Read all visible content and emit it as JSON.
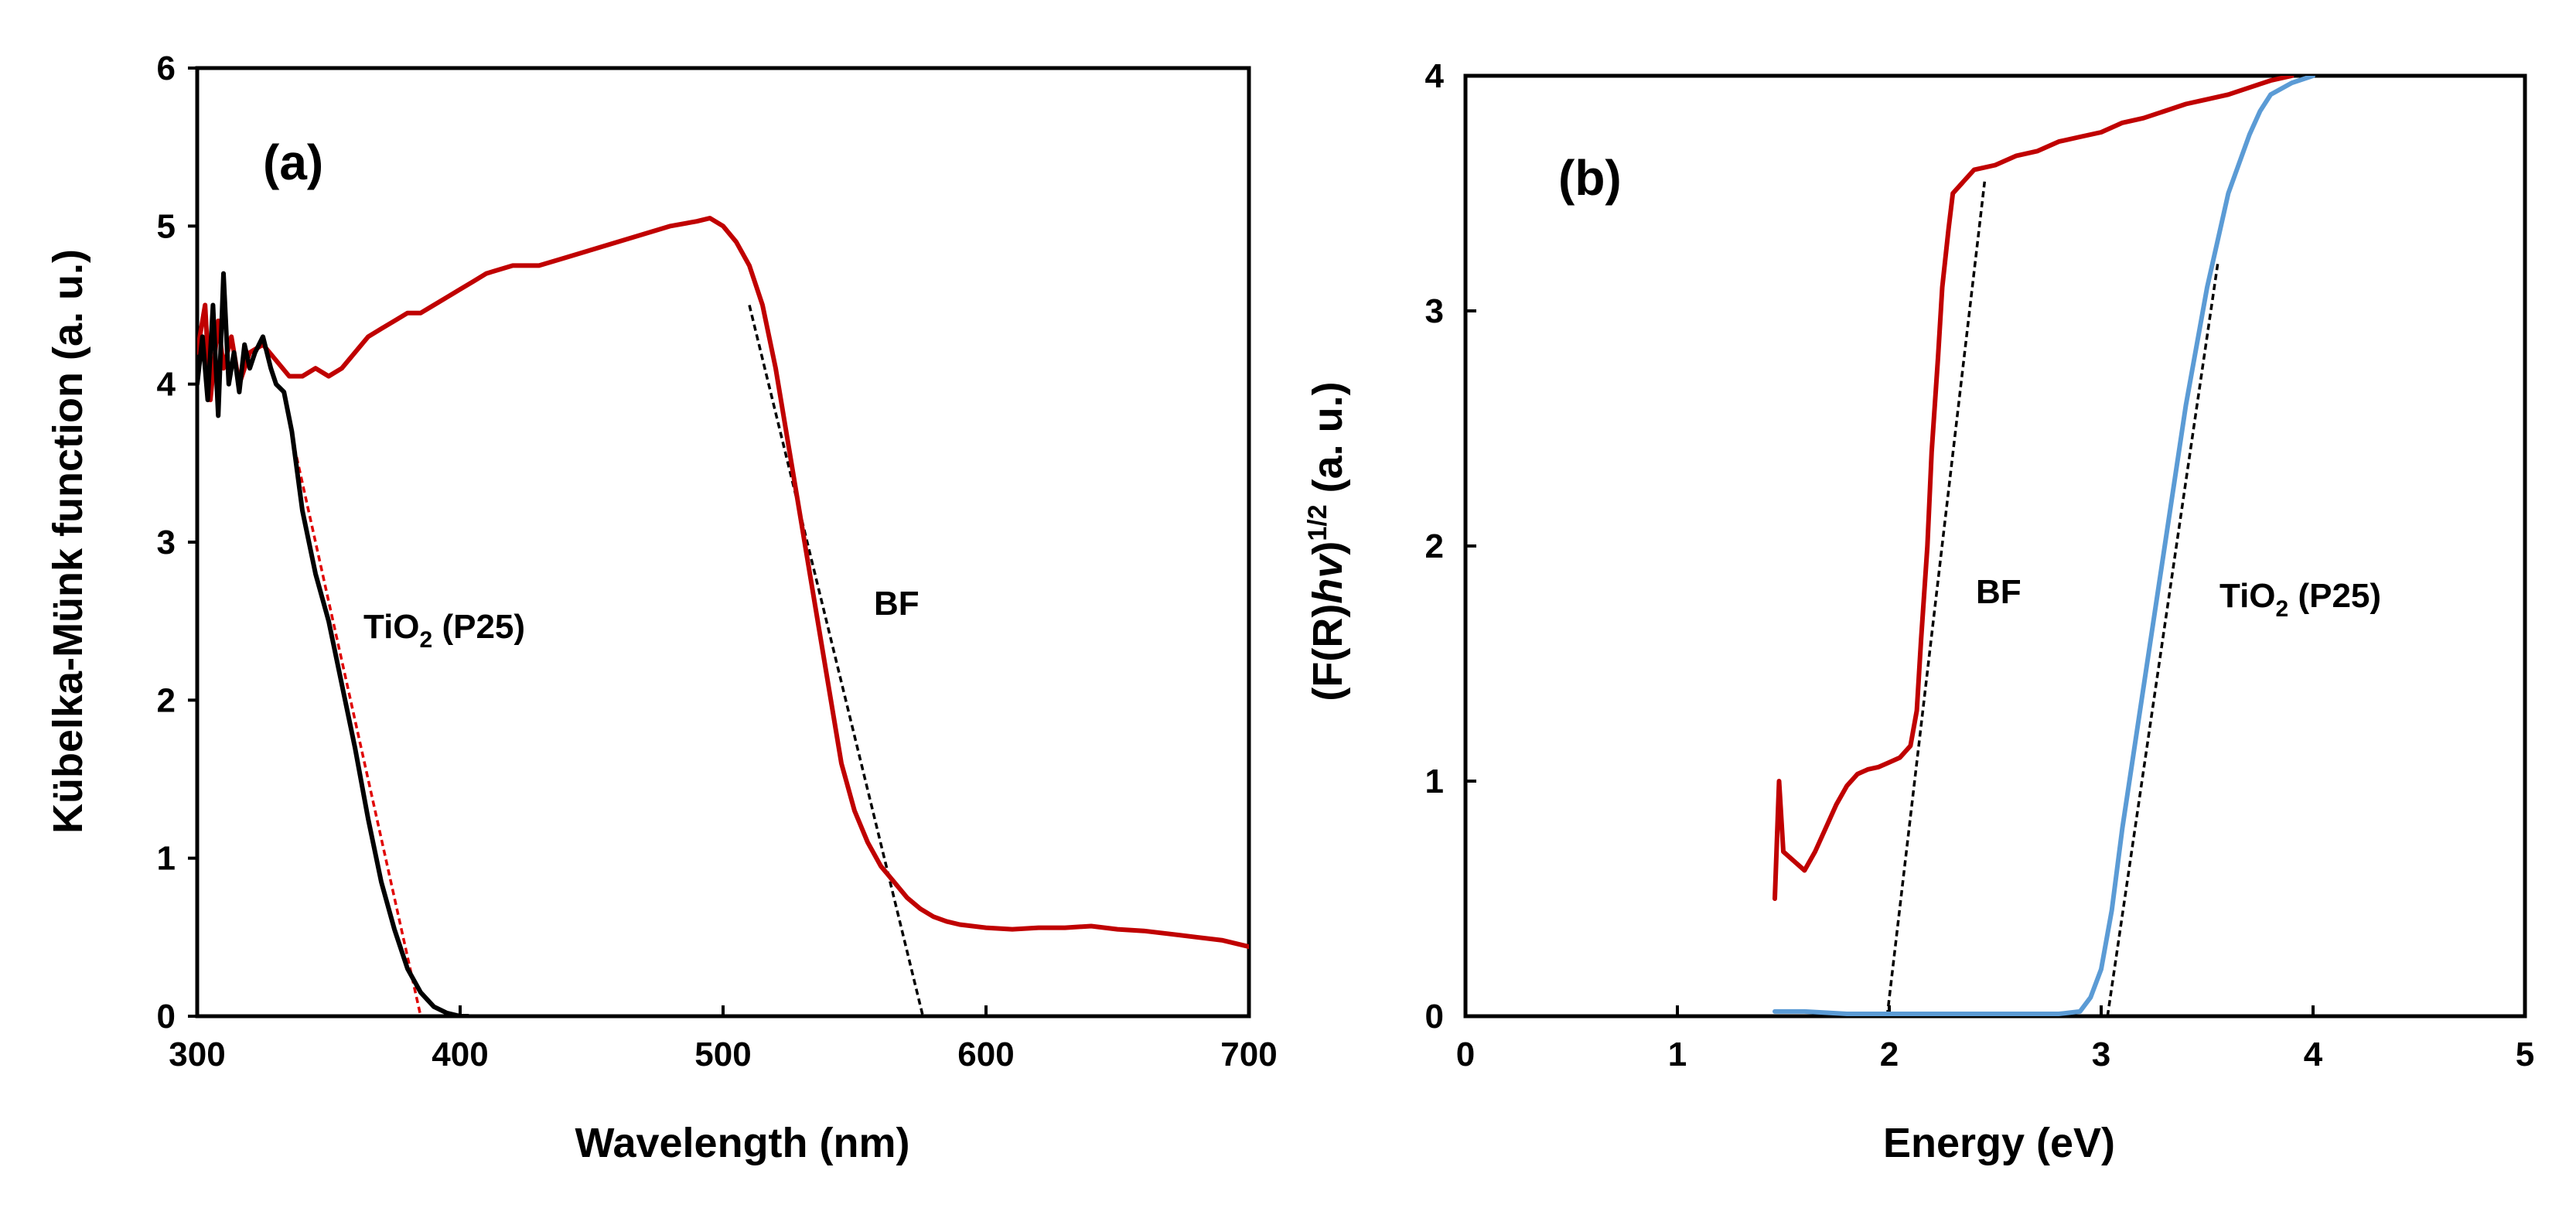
{
  "chart_data": [
    {
      "type": "line",
      "panel_label": "(a)",
      "xlabel": "Wavelength (nm)",
      "ylabel": "Kübelka-Münk function (a. u.)",
      "xlim": [
        300,
        700
      ],
      "ylim": [
        0,
        6
      ],
      "xticks": [
        "300",
        "400",
        "500",
        "600",
        "700"
      ],
      "yticks": [
        "0",
        "1",
        "2",
        "3",
        "4",
        "5",
        "6"
      ],
      "annotations": [
        {
          "id": "tio2",
          "main": "TiO",
          "sub": "2",
          "tail": " (P25)",
          "x": 362,
          "y": 2.5
        },
        {
          "id": "bf",
          "text": "BF",
          "x": 520,
          "y": 2.5
        }
      ],
      "series": [
        {
          "name": "BF",
          "color": "#c00000",
          "x": [
            300,
            303,
            305,
            308,
            310,
            313,
            316,
            320,
            325,
            330,
            335,
            340,
            345,
            350,
            355,
            360,
            365,
            370,
            375,
            380,
            385,
            390,
            395,
            400,
            405,
            410,
            420,
            430,
            440,
            450,
            460,
            470,
            480,
            490,
            495,
            500,
            505,
            510,
            515,
            520,
            525,
            530,
            535,
            540,
            545,
            550,
            555,
            560,
            565,
            570,
            575,
            580,
            585,
            590,
            600,
            610,
            620,
            630,
            640,
            650,
            660,
            670,
            680,
            690,
            700
          ],
          "y": [
            4.2,
            4.5,
            3.9,
            4.4,
            4.1,
            4.3,
            4.0,
            4.2,
            4.25,
            4.15,
            4.05,
            4.05,
            4.1,
            4.05,
            4.1,
            4.2,
            4.3,
            4.35,
            4.4,
            4.45,
            4.45,
            4.5,
            4.55,
            4.6,
            4.65,
            4.7,
            4.75,
            4.75,
            4.8,
            4.85,
            4.9,
            4.95,
            5.0,
            5.03,
            5.05,
            5.0,
            4.9,
            4.75,
            4.5,
            4.1,
            3.6,
            3.1,
            2.6,
            2.1,
            1.6,
            1.3,
            1.1,
            0.95,
            0.85,
            0.75,
            0.68,
            0.63,
            0.6,
            0.58,
            0.56,
            0.55,
            0.56,
            0.56,
            0.57,
            0.55,
            0.54,
            0.52,
            0.5,
            0.48,
            0.44
          ]
        },
        {
          "name": "TiO2 (P25)",
          "color": "#000000",
          "x": [
            300,
            302,
            304,
            306,
            308,
            310,
            312,
            314,
            316,
            318,
            320,
            322,
            325,
            328,
            330,
            333,
            336,
            340,
            345,
            350,
            355,
            360,
            365,
            370,
            375,
            380,
            385,
            390,
            395,
            400,
            403
          ],
          "y": [
            4.0,
            4.3,
            3.9,
            4.5,
            3.8,
            4.7,
            4.0,
            4.2,
            3.95,
            4.25,
            4.1,
            4.2,
            4.3,
            4.1,
            4.0,
            3.95,
            3.7,
            3.2,
            2.8,
            2.5,
            2.1,
            1.7,
            1.25,
            0.85,
            0.55,
            0.3,
            0.15,
            0.06,
            0.02,
            0.0,
            0.0
          ]
        }
      ],
      "tangents": [
        {
          "name": "TiO2 (P25) tangent",
          "color": "#e00000",
          "x": [
            337,
            385
          ],
          "y": [
            3.6,
            0
          ]
        },
        {
          "name": "BF tangent",
          "color": "#000000",
          "x": [
            510,
            576
          ],
          "y": [
            4.5,
            0
          ]
        }
      ]
    },
    {
      "type": "line",
      "panel_label": "(b)",
      "xlabel": "Energy (eV)",
      "ylabel": {
        "main": "(F(R)",
        "italic": "hv",
        "close": ")",
        "sup": "1/2",
        "tail": " (a. u.)"
      },
      "xlim": [
        0,
        5
      ],
      "ylim": [
        0,
        4
      ],
      "xticks": [
        "0",
        "1",
        "2",
        "3",
        "4",
        "5"
      ],
      "yticks": [
        "0",
        "1",
        "2",
        "3",
        "4"
      ],
      "annotations": [
        {
          "id": "bf",
          "text": "BF",
          "x": 2.4,
          "y": 1.75
        },
        {
          "id": "tio2",
          "main": "TiO",
          "sub": "2",
          "tail": " (P25)",
          "x": 3.6,
          "y": 1.75
        }
      ],
      "series": [
        {
          "name": "BF",
          "color": "#c00000",
          "x": [
            1.46,
            1.48,
            1.5,
            1.55,
            1.6,
            1.65,
            1.7,
            1.75,
            1.8,
            1.85,
            1.9,
            1.95,
            2.0,
            2.05,
            2.1,
            2.13,
            2.15,
            2.18,
            2.2,
            2.23,
            2.25,
            2.28,
            2.3,
            2.35,
            2.4,
            2.5,
            2.6,
            2.7,
            2.8,
            2.9,
            3.0,
            3.1,
            3.2,
            3.3,
            3.4,
            3.5,
            3.6,
            3.7,
            3.8,
            3.9
          ],
          "y": [
            0.5,
            1.0,
            0.7,
            0.66,
            0.62,
            0.7,
            0.8,
            0.9,
            0.98,
            1.03,
            1.05,
            1.06,
            1.08,
            1.1,
            1.15,
            1.3,
            1.6,
            2.0,
            2.4,
            2.8,
            3.1,
            3.35,
            3.5,
            3.55,
            3.6,
            3.62,
            3.66,
            3.68,
            3.72,
            3.74,
            3.76,
            3.8,
            3.82,
            3.85,
            3.88,
            3.9,
            3.92,
            3.95,
            3.98,
            4.0
          ]
        },
        {
          "name": "TiO2 (P25)",
          "color": "#5b9bd5",
          "x": [
            1.46,
            1.6,
            1.8,
            2.0,
            2.2,
            2.4,
            2.6,
            2.8,
            2.9,
            2.95,
            3.0,
            3.05,
            3.1,
            3.15,
            3.2,
            3.3,
            3.4,
            3.5,
            3.6,
            3.7,
            3.75,
            3.8,
            3.9,
            4.0
          ],
          "y": [
            0.02,
            0.02,
            0.01,
            0.01,
            0.01,
            0.01,
            0.01,
            0.01,
            0.02,
            0.08,
            0.2,
            0.45,
            0.8,
            1.1,
            1.4,
            2.0,
            2.6,
            3.1,
            3.5,
            3.75,
            3.85,
            3.92,
            3.97,
            4.0
          ]
        }
      ],
      "tangents": [
        {
          "name": "BF tangent",
          "color": "#000000",
          "x": [
            1.99,
            2.45
          ],
          "y": [
            0,
            3.55
          ]
        },
        {
          "name": "TiO2 (P25) tangent",
          "color": "#000000",
          "x": [
            3.03,
            3.55
          ],
          "y": [
            0,
            3.2
          ]
        }
      ]
    }
  ]
}
